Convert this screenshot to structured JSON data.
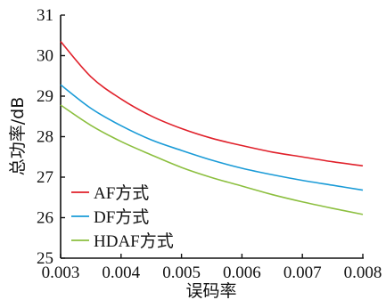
{
  "chart_data": {
    "type": "line",
    "title": "",
    "xlabel": "误码率",
    "ylabel": "总功率/dB",
    "xlim": [
      0.003,
      0.008
    ],
    "ylim": [
      25,
      31
    ],
    "xticks": [
      "0.003",
      "0.004",
      "0.005",
      "0.006",
      "0.007",
      "0.008"
    ],
    "yticks": [
      "25",
      "26",
      "27",
      "28",
      "29",
      "30",
      "31"
    ],
    "grid": false,
    "legend_position": "bottom-left",
    "series": [
      {
        "name": "AF方式",
        "color": "#e0202a",
        "x": [
          0.003,
          0.0035,
          0.004,
          0.0045,
          0.005,
          0.0055,
          0.006,
          0.0065,
          0.007,
          0.0075,
          0.008
        ],
        "y": [
          30.35,
          29.48,
          28.93,
          28.51,
          28.2,
          27.96,
          27.78,
          27.62,
          27.5,
          27.38,
          27.28
        ]
      },
      {
        "name": "DF方式",
        "color": "#1a9bd7",
        "x": [
          0.003,
          0.0035,
          0.004,
          0.0045,
          0.005,
          0.0055,
          0.006,
          0.0065,
          0.007,
          0.0075,
          0.008
        ],
        "y": [
          29.28,
          28.7,
          28.27,
          27.92,
          27.66,
          27.42,
          27.22,
          27.06,
          26.92,
          26.8,
          26.68
        ]
      },
      {
        "name": "HDAF方式",
        "color": "#8cbf3f",
        "x": [
          0.003,
          0.0035,
          0.004,
          0.0045,
          0.005,
          0.0055,
          0.006,
          0.0065,
          0.007,
          0.0075,
          0.008
        ],
        "y": [
          28.78,
          28.28,
          27.88,
          27.55,
          27.24,
          26.99,
          26.78,
          26.57,
          26.39,
          26.23,
          26.08
        ]
      }
    ]
  }
}
